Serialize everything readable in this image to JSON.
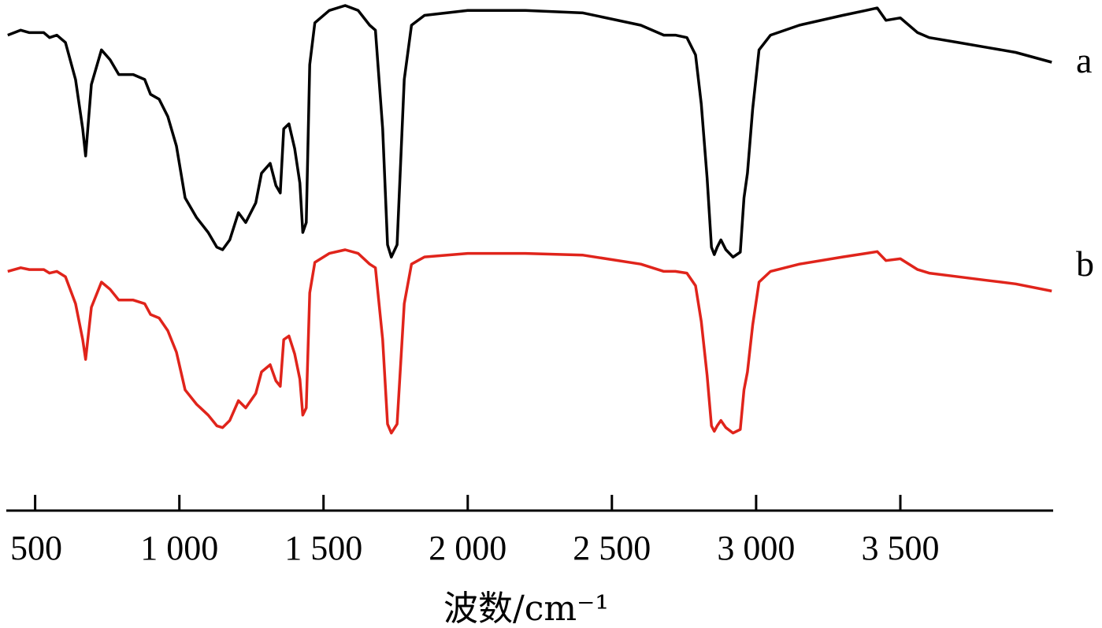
{
  "chart_data": {
    "type": "line",
    "title": "",
    "xlabel": "波数/cm⁻¹",
    "ylabel": "",
    "xlim": [
      400,
      4030
    ],
    "grid": false,
    "x_ticks": [
      500,
      1000,
      1500,
      2000,
      2500,
      3000,
      3500
    ],
    "x_tick_labels": [
      "500",
      "1 000",
      "1 500",
      "2 000",
      "2 500",
      "3 000",
      "3 500"
    ],
    "series": [
      {
        "name": "a",
        "color": "#000000",
        "points": [
          [
            405,
            0.88
          ],
          [
            450,
            0.9
          ],
          [
            480,
            0.89
          ],
          [
            530,
            0.89
          ],
          [
            550,
            0.87
          ],
          [
            575,
            0.88
          ],
          [
            605,
            0.85
          ],
          [
            640,
            0.7
          ],
          [
            665,
            0.5
          ],
          [
            675,
            0.39
          ],
          [
            695,
            0.68
          ],
          [
            730,
            0.82
          ],
          [
            760,
            0.78
          ],
          [
            790,
            0.72
          ],
          [
            840,
            0.72
          ],
          [
            880,
            0.7
          ],
          [
            900,
            0.64
          ],
          [
            930,
            0.62
          ],
          [
            960,
            0.55
          ],
          [
            990,
            0.43
          ],
          [
            1020,
            0.22
          ],
          [
            1060,
            0.14
          ],
          [
            1100,
            0.08
          ],
          [
            1130,
            0.02
          ],
          [
            1150,
            0.01
          ],
          [
            1175,
            0.05
          ],
          [
            1205,
            0.16
          ],
          [
            1230,
            0.12
          ],
          [
            1265,
            0.2
          ],
          [
            1285,
            0.32
          ],
          [
            1315,
            0.36
          ],
          [
            1335,
            0.27
          ],
          [
            1350,
            0.24
          ],
          [
            1362,
            0.5
          ],
          [
            1380,
            0.52
          ],
          [
            1400,
            0.42
          ],
          [
            1418,
            0.28
          ],
          [
            1428,
            0.08
          ],
          [
            1440,
            0.12
          ],
          [
            1452,
            0.76
          ],
          [
            1470,
            0.93
          ],
          [
            1520,
            0.98
          ],
          [
            1575,
            1.0
          ],
          [
            1620,
            0.98
          ],
          [
            1660,
            0.92
          ],
          [
            1680,
            0.9
          ],
          [
            1705,
            0.5
          ],
          [
            1722,
            0.03
          ],
          [
            1735,
            -0.02
          ],
          [
            1755,
            0.03
          ],
          [
            1780,
            0.7
          ],
          [
            1805,
            0.92
          ],
          [
            1850,
            0.96
          ],
          [
            2000,
            0.98
          ],
          [
            2200,
            0.98
          ],
          [
            2400,
            0.97
          ],
          [
            2600,
            0.92
          ],
          [
            2680,
            0.88
          ],
          [
            2720,
            0.88
          ],
          [
            2760,
            0.87
          ],
          [
            2790,
            0.8
          ],
          [
            2810,
            0.6
          ],
          [
            2830,
            0.3
          ],
          [
            2845,
            0.02
          ],
          [
            2855,
            -0.01
          ],
          [
            2865,
            0.02
          ],
          [
            2878,
            0.05
          ],
          [
            2895,
            0.01
          ],
          [
            2920,
            -0.02
          ],
          [
            2945,
            0.0
          ],
          [
            2958,
            0.22
          ],
          [
            2970,
            0.32
          ],
          [
            2988,
            0.58
          ],
          [
            3010,
            0.82
          ],
          [
            3050,
            0.88
          ],
          [
            3150,
            0.92
          ],
          [
            3300,
            0.96
          ],
          [
            3380,
            0.98
          ],
          [
            3420,
            0.99
          ],
          [
            3450,
            0.94
          ],
          [
            3500,
            0.95
          ],
          [
            3560,
            0.89
          ],
          [
            3600,
            0.87
          ],
          [
            3700,
            0.85
          ],
          [
            3800,
            0.83
          ],
          [
            3900,
            0.81
          ],
          [
            4025,
            0.77
          ]
        ]
      },
      {
        "name": "b",
        "color": "#e0241b",
        "points": [
          [
            405,
            0.88
          ],
          [
            450,
            0.9
          ],
          [
            480,
            0.89
          ],
          [
            530,
            0.89
          ],
          [
            550,
            0.87
          ],
          [
            575,
            0.88
          ],
          [
            605,
            0.85
          ],
          [
            640,
            0.7
          ],
          [
            665,
            0.5
          ],
          [
            675,
            0.39
          ],
          [
            695,
            0.68
          ],
          [
            730,
            0.82
          ],
          [
            760,
            0.78
          ],
          [
            790,
            0.72
          ],
          [
            840,
            0.72
          ],
          [
            880,
            0.7
          ],
          [
            900,
            0.64
          ],
          [
            930,
            0.62
          ],
          [
            960,
            0.55
          ],
          [
            990,
            0.43
          ],
          [
            1020,
            0.22
          ],
          [
            1060,
            0.14
          ],
          [
            1100,
            0.08
          ],
          [
            1130,
            0.02
          ],
          [
            1150,
            0.01
          ],
          [
            1175,
            0.05
          ],
          [
            1205,
            0.16
          ],
          [
            1230,
            0.12
          ],
          [
            1265,
            0.2
          ],
          [
            1285,
            0.32
          ],
          [
            1315,
            0.36
          ],
          [
            1335,
            0.27
          ],
          [
            1350,
            0.24
          ],
          [
            1362,
            0.5
          ],
          [
            1380,
            0.52
          ],
          [
            1400,
            0.42
          ],
          [
            1418,
            0.28
          ],
          [
            1428,
            0.08
          ],
          [
            1440,
            0.12
          ],
          [
            1452,
            0.76
          ],
          [
            1470,
            0.93
          ],
          [
            1520,
            0.98
          ],
          [
            1575,
            1.0
          ],
          [
            1620,
            0.98
          ],
          [
            1660,
            0.92
          ],
          [
            1680,
            0.9
          ],
          [
            1705,
            0.5
          ],
          [
            1722,
            0.03
          ],
          [
            1735,
            -0.02
          ],
          [
            1755,
            0.03
          ],
          [
            1780,
            0.7
          ],
          [
            1805,
            0.92
          ],
          [
            1850,
            0.96
          ],
          [
            2000,
            0.98
          ],
          [
            2200,
            0.98
          ],
          [
            2400,
            0.97
          ],
          [
            2600,
            0.92
          ],
          [
            2680,
            0.88
          ],
          [
            2720,
            0.88
          ],
          [
            2760,
            0.87
          ],
          [
            2790,
            0.8
          ],
          [
            2810,
            0.6
          ],
          [
            2830,
            0.3
          ],
          [
            2845,
            0.02
          ],
          [
            2855,
            -0.01
          ],
          [
            2865,
            0.02
          ],
          [
            2878,
            0.05
          ],
          [
            2895,
            0.01
          ],
          [
            2920,
            -0.02
          ],
          [
            2945,
            0.0
          ],
          [
            2958,
            0.22
          ],
          [
            2970,
            0.32
          ],
          [
            2988,
            0.58
          ],
          [
            3010,
            0.82
          ],
          [
            3050,
            0.88
          ],
          [
            3150,
            0.92
          ],
          [
            3300,
            0.96
          ],
          [
            3380,
            0.98
          ],
          [
            3420,
            0.99
          ],
          [
            3450,
            0.94
          ],
          [
            3500,
            0.95
          ],
          [
            3560,
            0.89
          ],
          [
            3600,
            0.87
          ],
          [
            3700,
            0.85
          ],
          [
            3800,
            0.83
          ],
          [
            3900,
            0.81
          ],
          [
            4025,
            0.77
          ]
        ]
      }
    ]
  }
}
